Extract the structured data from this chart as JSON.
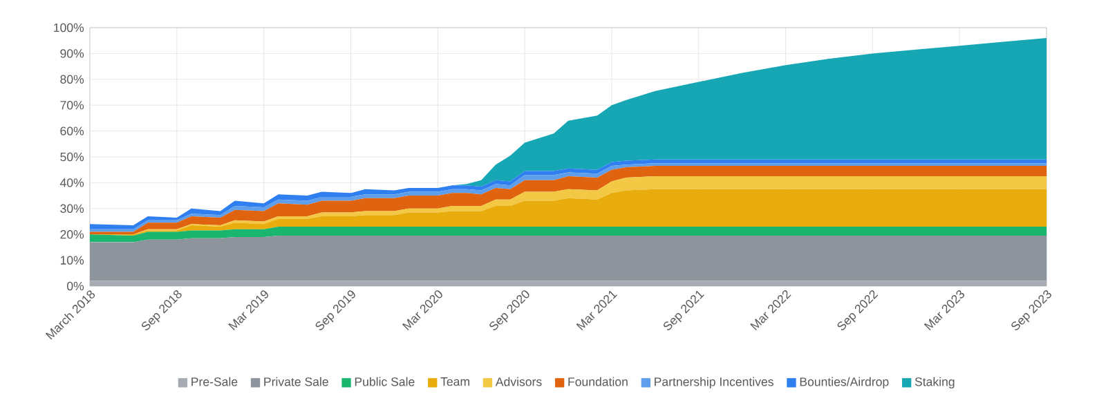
{
  "chart_data": {
    "type": "area",
    "stacked": true,
    "grid": true,
    "legend": "bottom",
    "x": [
      "2018-03",
      "2018-06",
      "2018-07",
      "2018-09",
      "2018-10",
      "2018-12",
      "2019-01",
      "2019-03",
      "2019-04",
      "2019-06",
      "2019-07",
      "2019-09",
      "2019-10",
      "2019-12",
      "2020-01",
      "2020-03",
      "2020-04",
      "2020-05",
      "2020-06",
      "2020-07",
      "2020-08",
      "2020-09",
      "2020-11",
      "2020-12",
      "2021-02",
      "2021-03",
      "2021-04",
      "2021-06",
      "2021-09",
      "2021-12",
      "2022-03",
      "2022-06",
      "2022-09",
      "2022-12",
      "2023-03",
      "2023-06",
      "2023-09"
    ],
    "xlim": [
      "2018-03",
      "2023-09"
    ],
    "xticks": [
      {
        "value": "2018-03",
        "label": "March 2018"
      },
      {
        "value": "2018-09",
        "label": "Sep 2018"
      },
      {
        "value": "2019-03",
        "label": "Mar 2019"
      },
      {
        "value": "2019-09",
        "label": "Sep 2019"
      },
      {
        "value": "2020-03",
        "label": "Mar 2020"
      },
      {
        "value": "2020-09",
        "label": "Sep 2020"
      },
      {
        "value": "2021-03",
        "label": "Mar 2021"
      },
      {
        "value": "2021-09",
        "label": "Sep 2021"
      },
      {
        "value": "2022-03",
        "label": "Mar 2022"
      },
      {
        "value": "2022-09",
        "label": "Sep 2022"
      },
      {
        "value": "2023-03",
        "label": "Mar 2023"
      },
      {
        "value": "2023-09",
        "label": "Sep 2023"
      }
    ],
    "ylim": [
      0,
      100
    ],
    "yticks": [
      {
        "value": 0,
        "label": "0%"
      },
      {
        "value": 10,
        "label": "10%"
      },
      {
        "value": 20,
        "label": "20%"
      },
      {
        "value": 30,
        "label": "30%"
      },
      {
        "value": 40,
        "label": "40%"
      },
      {
        "value": 50,
        "label": "50%"
      },
      {
        "value": 60,
        "label": "60%"
      },
      {
        "value": 70,
        "label": "70%"
      },
      {
        "value": 80,
        "label": "80%"
      },
      {
        "value": 90,
        "label": "90%"
      },
      {
        "value": 100,
        "label": "100%"
      }
    ],
    "series": [
      {
        "name": "Pre-Sale",
        "color": "#a6aab1",
        "values": [
          2,
          2,
          2,
          2,
          2,
          2,
          2,
          2,
          2,
          2,
          2,
          2,
          2,
          2,
          2,
          2,
          2,
          2,
          2,
          2,
          2,
          2,
          2,
          2,
          2,
          2,
          2,
          2,
          2,
          2,
          2,
          2,
          2,
          2,
          2,
          2,
          2
        ]
      },
      {
        "name": "Private Sale",
        "color": "#8e949c",
        "values": [
          15,
          15,
          16,
          16,
          16.5,
          16.5,
          17,
          17,
          17.5,
          17.5,
          17.5,
          17.5,
          17.5,
          17.5,
          17.5,
          17.5,
          17.5,
          17.5,
          17.5,
          17.5,
          17.5,
          17.5,
          17.5,
          17.5,
          17.5,
          17.5,
          17.5,
          17.5,
          17.5,
          17.5,
          17.5,
          17.5,
          17.5,
          17.5,
          17.5,
          17.5,
          17.5
        ]
      },
      {
        "name": "Public Sale",
        "color": "#1ab56e",
        "values": [
          3,
          2.5,
          3,
          3,
          3,
          3,
          3,
          3,
          3.5,
          3.5,
          3.5,
          3.5,
          3.5,
          3.5,
          3.5,
          3.5,
          3.5,
          3.5,
          3.5,
          3.5,
          3.5,
          3.5,
          3.5,
          3.5,
          3.5,
          3.5,
          3.5,
          3.5,
          3.5,
          3.5,
          3.5,
          3.5,
          3.5,
          3.5,
          3.5,
          3.5,
          3.5
        ]
      },
      {
        "name": "Team",
        "color": "#e8ad0c",
        "values": [
          0,
          0.5,
          0.5,
          0.5,
          2,
          1.5,
          2.5,
          2,
          3,
          3,
          4,
          4,
          4.5,
          4.5,
          5.5,
          5.5,
          6,
          6,
          6,
          8,
          8,
          10,
          10,
          11,
          10.5,
          13,
          14,
          14.5,
          14.5,
          14.5,
          14.5,
          14.5,
          14.5,
          14.5,
          14.5,
          14.5,
          14.5
        ]
      },
      {
        "name": "Advisors",
        "color": "#f3c844",
        "values": [
          0,
          0,
          0.5,
          0.5,
          0.5,
          0.5,
          1,
          1,
          1,
          1,
          1.5,
          1.5,
          1.5,
          1.5,
          1.5,
          1.5,
          2,
          2,
          2,
          2.5,
          2.5,
          3.5,
          3.5,
          3.5,
          3.5,
          4.5,
          5,
          5,
          5,
          5,
          5,
          5,
          5,
          5,
          5,
          5,
          5
        ]
      },
      {
        "name": "Foundation",
        "color": "#e0630f",
        "values": [
          1,
          1,
          2.5,
          2.5,
          3,
          3,
          4,
          4,
          5,
          4.5,
          4.5,
          4.5,
          5,
          5,
          5,
          5,
          5,
          5,
          4.5,
          4.5,
          4,
          4.5,
          4.5,
          5,
          5,
          4.5,
          4,
          4,
          4,
          4,
          4,
          4,
          4,
          4,
          4,
          4,
          4
        ]
      },
      {
        "name": "Partnership Incentives",
        "color": "#5f9eea",
        "values": [
          1,
          1,
          1,
          1,
          1,
          1,
          1.5,
          1.5,
          1.5,
          1.5,
          1.5,
          1.5,
          1.5,
          1.5,
          1.5,
          1.5,
          1.5,
          1.5,
          1.5,
          1.5,
          1.5,
          2,
          2,
          1.5,
          1.5,
          1.5,
          1,
          1,
          1,
          1,
          1,
          1,
          1,
          1,
          1,
          1,
          1
        ]
      },
      {
        "name": "Bounties/Airdrop",
        "color": "#2f7ff0",
        "values": [
          2,
          1.5,
          1.5,
          1,
          2,
          1.5,
          2,
          1.5,
          2,
          2,
          2,
          1.5,
          2,
          1.5,
          1.5,
          1.5,
          1.5,
          1.5,
          1.5,
          1.5,
          1.5,
          1.5,
          1.5,
          1.5,
          1.5,
          1.5,
          1.5,
          1.5,
          1.5,
          1.5,
          1.5,
          1.5,
          1.5,
          1.5,
          1.5,
          1.5,
          1.5
        ]
      },
      {
        "name": "Staking",
        "color": "#17a6b4",
        "values": [
          0,
          0,
          0,
          0,
          0,
          0,
          0,
          0,
          0,
          0,
          0,
          0,
          0,
          0,
          0,
          0,
          0,
          0.5,
          2.5,
          6,
          10,
          11,
          14.5,
          18.5,
          21,
          22,
          23.5,
          26.5,
          30,
          33.5,
          36.5,
          39,
          41,
          42.5,
          44,
          45.5,
          47
        ]
      }
    ]
  }
}
